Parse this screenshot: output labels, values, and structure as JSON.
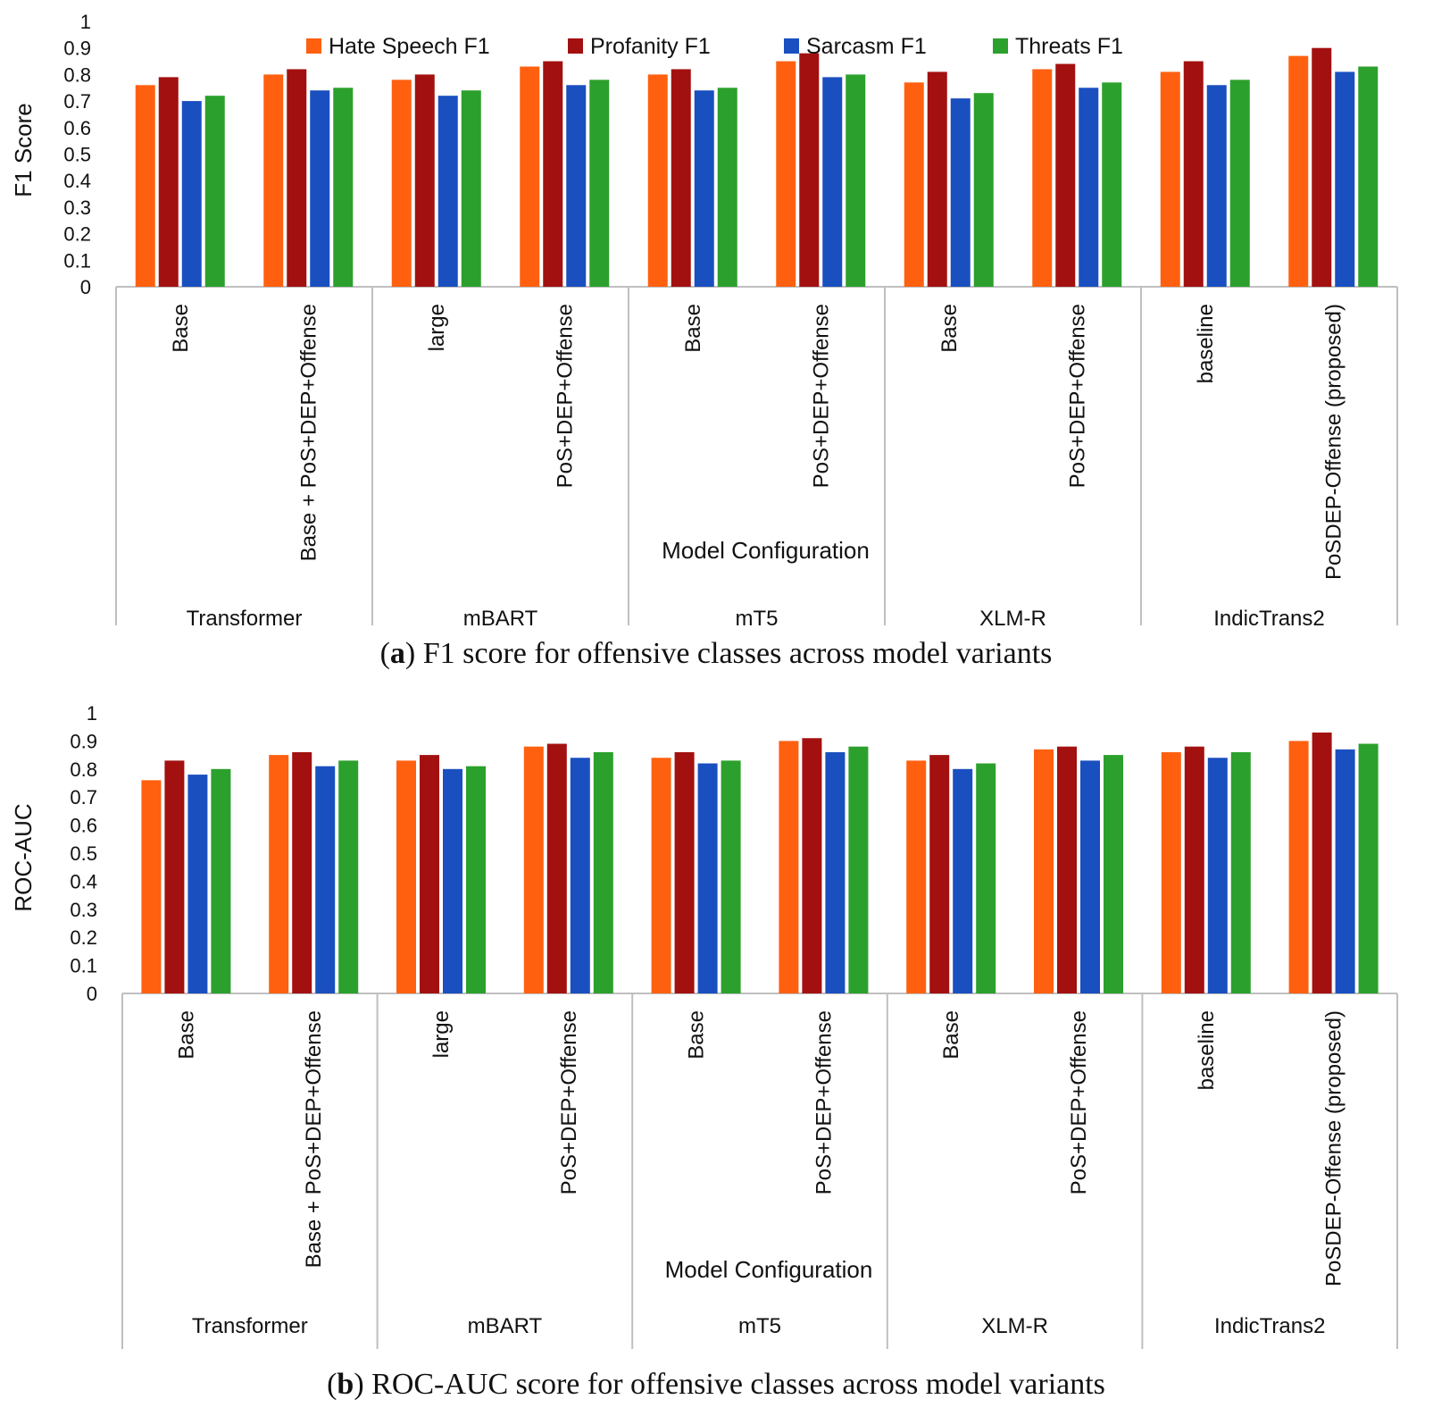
{
  "colors": {
    "Hate Speech F1": "#ff6010",
    "Profanity F1": "#a31010",
    "Sarcasm F1": "#1a4fc0",
    "Threats F1": "#2ca02c",
    "axis": "#bfbfbf"
  },
  "chart_data": [
    {
      "type": "bar",
      "caption_letter": "a",
      "caption_text": ") F1 score for offensive classes across model variants",
      "ylabel": "F1 Score",
      "xlabel": "Model Configuration",
      "ylim": [
        0,
        1
      ],
      "yticks": [
        "0",
        "0.1",
        "0.2",
        "0.3",
        "0.4",
        "0.5",
        "0.6",
        "0.7",
        "0.8",
        "0.9",
        "1"
      ],
      "legend_placement": "top",
      "groups": [
        "Transformer",
        "mBART",
        "mT5",
        "XLM-R",
        "IndicTrans2"
      ],
      "categories": [
        "Base",
        "Base + PoS+DEP+Offense",
        "large",
        "PoS+DEP+Offense",
        "Base",
        "PoS+DEP+Offense",
        "Base",
        "PoS+DEP+Offense",
        "baseline",
        "PoSDEP-Offense (proposed)"
      ],
      "series": [
        {
          "name": "Hate Speech F1",
          "values": [
            0.76,
            0.8,
            0.78,
            0.83,
            0.8,
            0.85,
            0.77,
            0.82,
            0.81,
            0.87
          ]
        },
        {
          "name": "Profanity F1",
          "values": [
            0.79,
            0.82,
            0.8,
            0.85,
            0.82,
            0.88,
            0.81,
            0.84,
            0.85,
            0.9
          ]
        },
        {
          "name": "Sarcasm F1",
          "values": [
            0.7,
            0.74,
            0.72,
            0.76,
            0.74,
            0.79,
            0.71,
            0.75,
            0.76,
            0.81
          ]
        },
        {
          "name": "Threats F1",
          "values": [
            0.72,
            0.75,
            0.74,
            0.78,
            0.75,
            0.8,
            0.73,
            0.77,
            0.78,
            0.83
          ]
        }
      ]
    },
    {
      "type": "bar",
      "caption_letter": "b",
      "caption_text": ") ROC-AUC score for offensive classes across model variants",
      "ylabel": "ROC-AUC",
      "xlabel": "Model Configuration",
      "ylim": [
        0,
        1
      ],
      "yticks": [
        "0",
        "0.1",
        "0.2",
        "0.3",
        "0.4",
        "0.5",
        "0.6",
        "0.7",
        "0.8",
        "0.9",
        "1"
      ],
      "legend_placement": "none",
      "groups": [
        "Transformer",
        "mBART",
        "mT5",
        "XLM-R",
        "IndicTrans2"
      ],
      "categories": [
        "Base",
        "Base + PoS+DEP+Offense",
        "large",
        "PoS+DEP+Offense",
        "Base",
        "PoS+DEP+Offense",
        "Base",
        "PoS+DEP+Offense",
        "baseline",
        "PoSDEP-Offense (proposed)"
      ],
      "series": [
        {
          "name": "Hate Speech F1",
          "values": [
            0.76,
            0.85,
            0.83,
            0.88,
            0.84,
            0.9,
            0.83,
            0.87,
            0.86,
            0.9
          ]
        },
        {
          "name": "Profanity F1",
          "values": [
            0.83,
            0.86,
            0.85,
            0.89,
            0.86,
            0.91,
            0.85,
            0.88,
            0.88,
            0.93
          ]
        },
        {
          "name": "Sarcasm F1",
          "values": [
            0.78,
            0.81,
            0.8,
            0.84,
            0.82,
            0.86,
            0.8,
            0.83,
            0.84,
            0.87
          ]
        },
        {
          "name": "Threats F1",
          "values": [
            0.8,
            0.83,
            0.81,
            0.86,
            0.83,
            0.88,
            0.82,
            0.85,
            0.86,
            0.89
          ]
        }
      ]
    }
  ]
}
